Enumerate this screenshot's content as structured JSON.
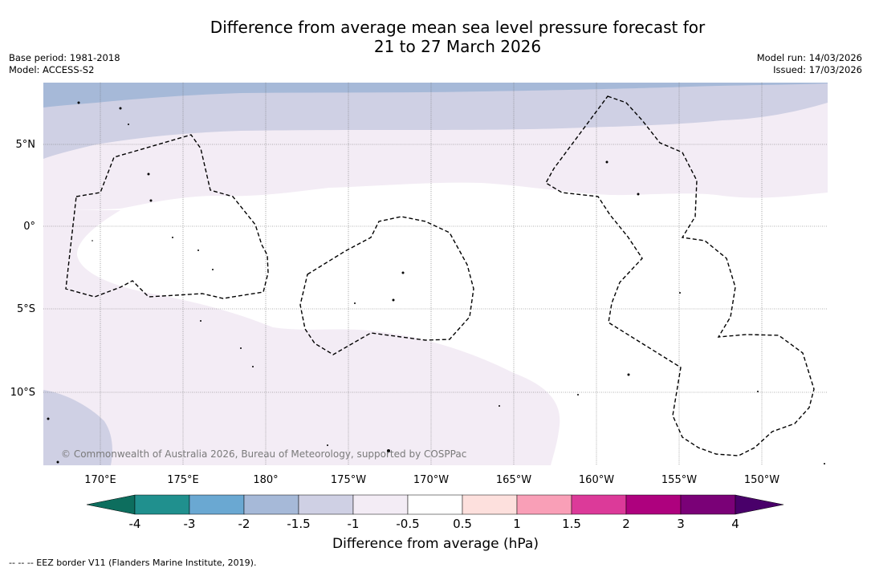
{
  "title": {
    "line1": "Difference from average mean sea level pressure forecast for",
    "line2": "21 to 27 March 2026"
  },
  "meta": {
    "base_period": "Base period: 1981-2018",
    "model": "Model: ACCESS-S2",
    "model_run": "Model run: 14/03/2026",
    "issued": "Issued: 17/03/2026"
  },
  "axes": {
    "latitude_labels": [
      "5°N",
      "0°",
      "5°S",
      "10°S"
    ],
    "longitude_labels": [
      "170°E",
      "175°E",
      "180°",
      "175°W",
      "170°W",
      "165°W",
      "160°W",
      "155°W",
      "150°W"
    ]
  },
  "copyright": "© Commonwealth of Australia 2026, Bureau of Meteorology, supported by COSPPac",
  "colorbar": {
    "title": "Difference from average (hPa)",
    "ticks": [
      "-4",
      "-3",
      "-2",
      "-1.5",
      "-1",
      "-0.5",
      "0.5",
      "1",
      "1.5",
      "2",
      "3",
      "4"
    ],
    "colors": {
      "below": "#0d6e5e",
      "c1": "#20908e",
      "c2": "#6aa8d2",
      "c3": "#a6b9d8",
      "c4": "#cfd0e4",
      "c5": "#f3ecf5",
      "c6": "#ffffff",
      "c7": "#fde0dd",
      "c8": "#f99fb7",
      "c9": "#dc3a99",
      "c10": "#ae017e",
      "c11": "#7a0177",
      "above": "#49006a"
    }
  },
  "legend": "--  --  -- EEZ border V11 (Flanders Marine Institute, 2019)."
}
